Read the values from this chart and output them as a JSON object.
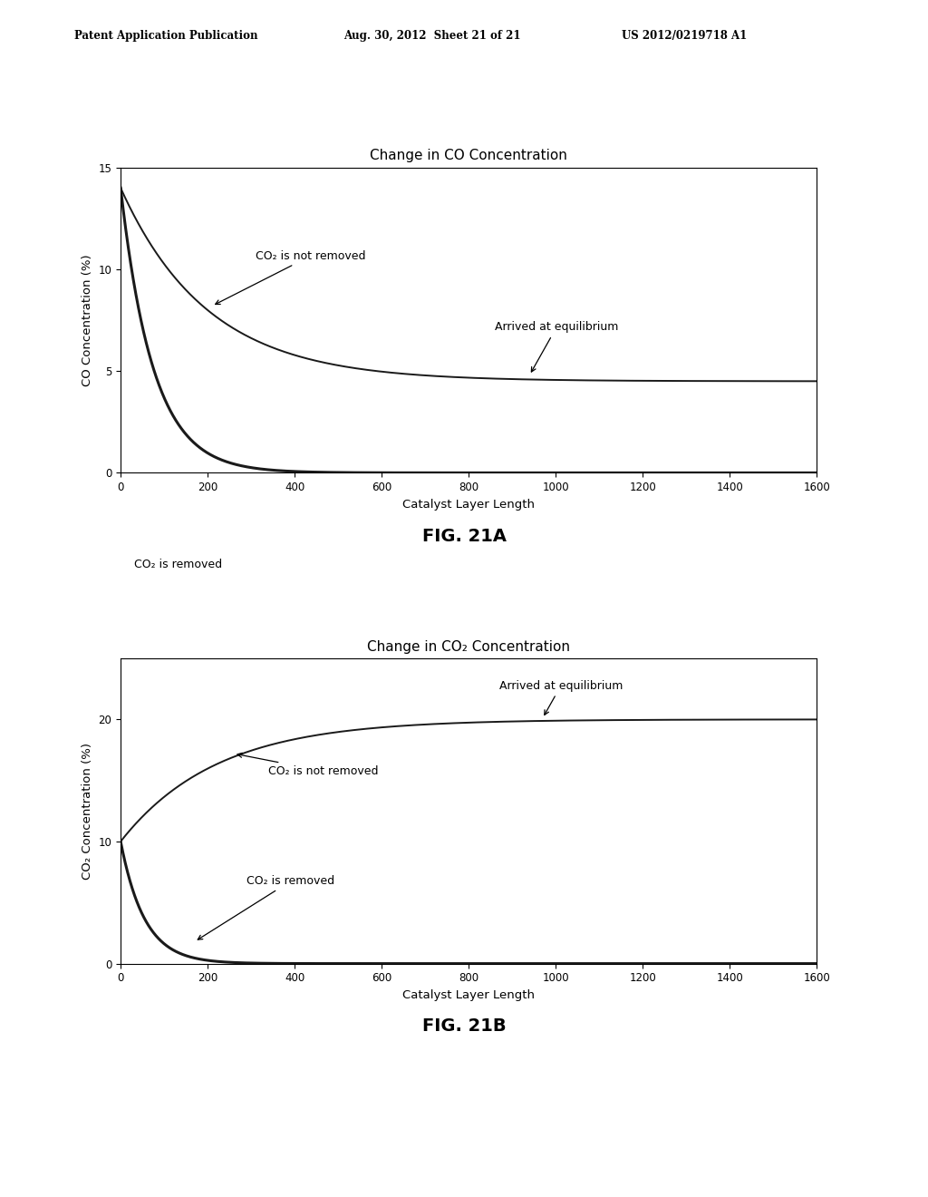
{
  "header_left": "Patent Application Publication",
  "header_mid": "Aug. 30, 2012  Sheet 21 of 21",
  "header_right": "US 2012/0219718 A1",
  "fig_a": {
    "title": "Change in CO Concentration",
    "xlabel": "Catalyst Layer Length",
    "ylabel": "CO Concentration (%)",
    "xlim": [
      0,
      1600
    ],
    "ylim": [
      0,
      15
    ],
    "yticks": [
      0,
      5,
      10,
      15
    ],
    "xticks": [
      0,
      200,
      400,
      600,
      800,
      1000,
      1200,
      1400,
      1600
    ],
    "label_a": "FIG. 21A",
    "annot_not_removed": "CO₂ is not removed",
    "annot_equilibrium": "Arrived at equilibrium",
    "annot_removed": "CO₂ is removed",
    "curve_not_removed_start": 14.0,
    "curve_not_removed_end": 4.5,
    "curve_not_removed_tau": 200,
    "curve_removed_start": 14.0,
    "curve_removed_tau": 75
  },
  "fig_b": {
    "title": "Change in CO₂ Concentration",
    "xlabel": "Catalyst Layer Length",
    "ylabel": "CO₂ Concentration (%)",
    "xlim": [
      0,
      1600
    ],
    "ylim": [
      0,
      25
    ],
    "yticks": [
      0,
      10,
      20
    ],
    "xticks": [
      0,
      200,
      400,
      600,
      800,
      1000,
      1200,
      1400,
      1600
    ],
    "label_b": "FIG. 21B",
    "annot_not_removed": "CO₂ is not removed",
    "annot_equilibrium": "Arrived at equilibrium",
    "annot_removed": "CO₂ is removed",
    "curve_not_removed_start": 10.0,
    "curve_not_removed_end": 20.0,
    "curve_not_removed_tau": 220,
    "curve_removed_start": 10.0,
    "curve_removed_tau": 55
  },
  "bg_color": "#ffffff",
  "line_color": "#1a1a1a",
  "dotted_line_color": "#888888"
}
